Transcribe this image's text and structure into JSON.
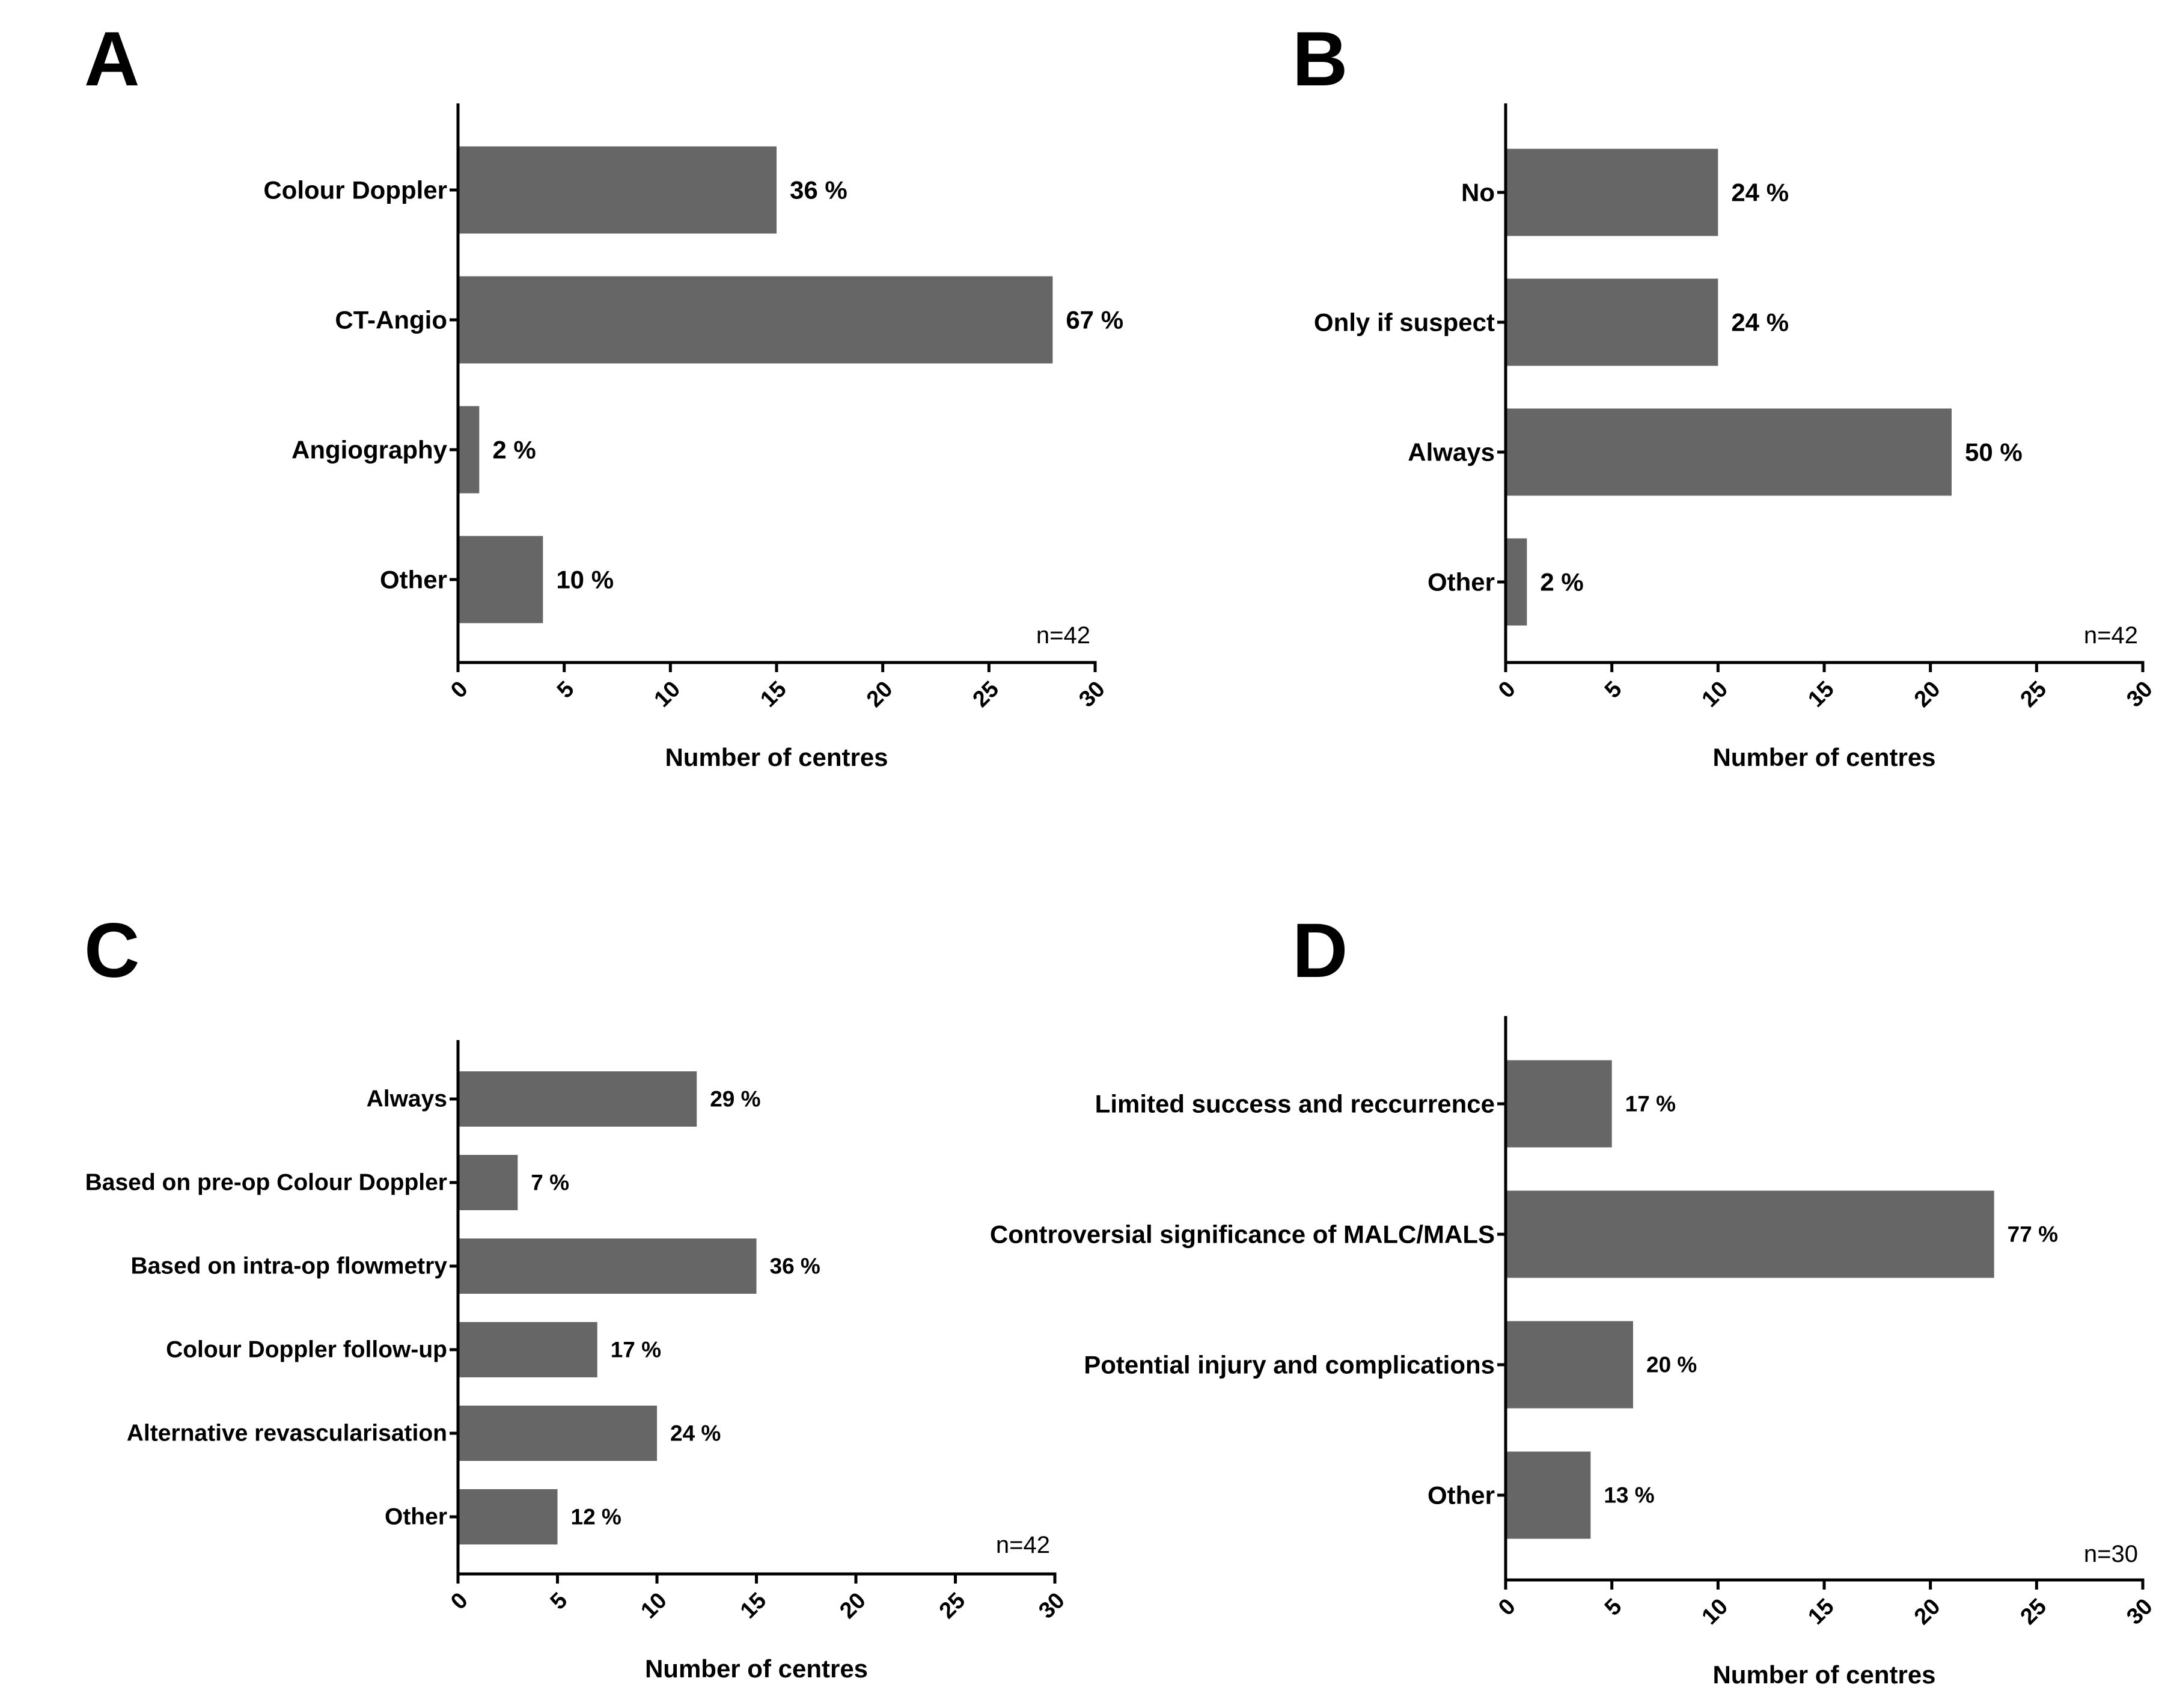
{
  "figure": {
    "bar_color": "#666666",
    "axis_color": "#000000",
    "text_color": "#000000"
  },
  "chart_data": [
    {
      "panel": "A",
      "type": "bar",
      "orientation": "horizontal",
      "categories": [
        "Colour Doppler",
        "CT-Angio",
        "Angiography",
        "Other"
      ],
      "values": [
        15,
        28,
        1,
        4
      ],
      "data_labels": [
        "36 %",
        "67 %",
        "2 %",
        "10 %"
      ],
      "xlabel": "Number of centres",
      "xlim": [
        0,
        30
      ],
      "xticks": [
        0,
        5,
        10,
        15,
        20,
        25,
        30
      ],
      "annotation": "n=42",
      "grid": false
    },
    {
      "panel": "B",
      "type": "bar",
      "orientation": "horizontal",
      "categories": [
        "No",
        "Only if suspect",
        "Always",
        "Other"
      ],
      "values": [
        10,
        10,
        21,
        1
      ],
      "data_labels": [
        "24 %",
        "24 %",
        "50 %",
        "2 %"
      ],
      "xlabel": "Number of centres",
      "xlim": [
        0,
        30
      ],
      "xticks": [
        0,
        5,
        10,
        15,
        20,
        25,
        30
      ],
      "annotation": "n=42",
      "grid": false
    },
    {
      "panel": "C",
      "type": "bar",
      "orientation": "horizontal",
      "categories": [
        "Always",
        "Based on pre-op Colour Doppler",
        "Based on intra-op flowmetry",
        "Colour Doppler follow-up",
        "Alternative revascularisation",
        "Other"
      ],
      "values": [
        12,
        3,
        15,
        7,
        10,
        5
      ],
      "data_labels": [
        "29 %",
        "7 %",
        "36 %",
        "17 %",
        "24 %",
        "12 %"
      ],
      "xlabel": "Number of centres",
      "xlim": [
        0,
        30
      ],
      "xticks": [
        0,
        5,
        10,
        15,
        20,
        25,
        30
      ],
      "annotation": "n=42",
      "grid": false
    },
    {
      "panel": "D",
      "type": "bar",
      "orientation": "horizontal",
      "categories": [
        "Limited success and reccurrence",
        "Controversial significance of MALC/MALS",
        "Potential injury and complications",
        "Other"
      ],
      "values": [
        5,
        23,
        6,
        4
      ],
      "data_labels": [
        "17 %",
        "77 %",
        "20 %",
        "13 %"
      ],
      "xlabel": "Number of centres",
      "xlim": [
        0,
        30
      ],
      "xticks": [
        0,
        5,
        10,
        15,
        20,
        25,
        30
      ],
      "annotation": "n=30",
      "grid": false
    }
  ]
}
